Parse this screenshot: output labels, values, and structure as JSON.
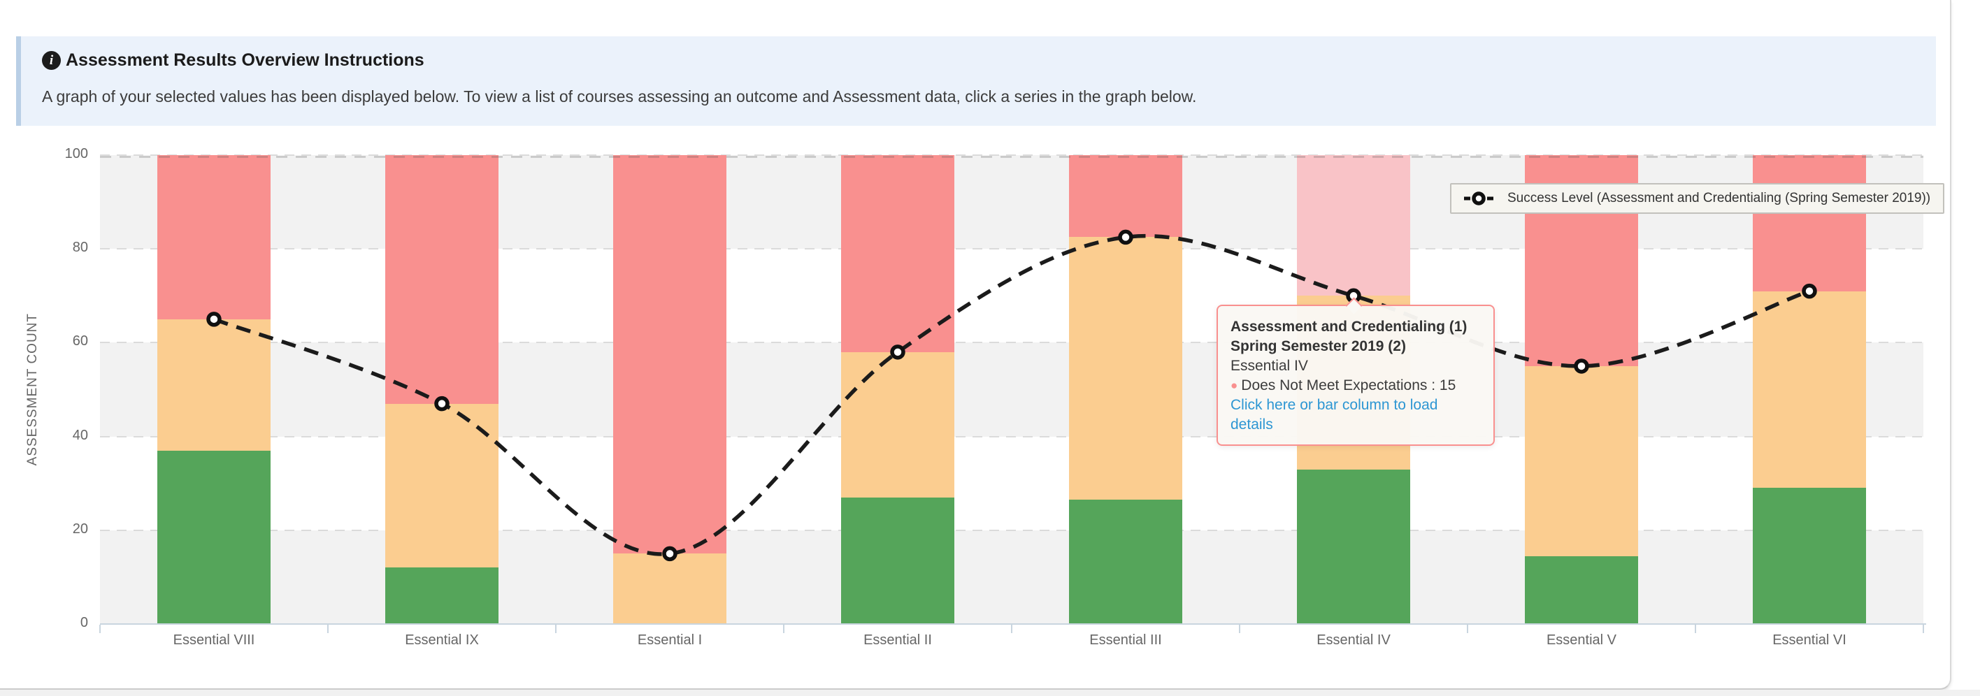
{
  "banner": {
    "title": "Assessment Results Overview Instructions",
    "body": "A graph of your selected values has been displayed below. To view a list of courses assessing an outcome and Assessment data, click a series in the graph below."
  },
  "legend": {
    "label": "Success Level (Assessment and Credentialing (Spring Semester 2019))"
  },
  "tooltip": {
    "line1": "Assessment and Credentialing (1)",
    "line2": "Spring Semester 2019 (2)",
    "line3": "Essential IV",
    "value_line": "Does Not Meet Expectations : 15",
    "link": "Click here or bar column to load details"
  },
  "chart_data": {
    "type": "bar",
    "subtype": "stacked-columns-with-dashed-line-overlay",
    "title": "",
    "xlabel": "",
    "ylabel": "ASSESSMENT COUNT",
    "ylim": [
      0,
      100
    ],
    "yticks": [
      0,
      20,
      40,
      60,
      80,
      100
    ],
    "alternate_grid_bands": true,
    "grid": true,
    "legend_position": "top-right-inside",
    "categories": [
      "Essential VIII",
      "Essential IX",
      "Essential I",
      "Essential II",
      "Essential III",
      "Essential IV",
      "Essential V",
      "Essential VI"
    ],
    "series": [
      {
        "id": "green",
        "color": "#55A55A",
        "values": [
          37,
          12,
          0,
          27,
          26.5,
          33,
          14.5,
          29
        ]
      },
      {
        "id": "orange",
        "color": "#FBCD90",
        "values": [
          28,
          35,
          15,
          31,
          56,
          37,
          40.5,
          42
        ]
      },
      {
        "id": "red",
        "label": "Does Not Meet Expectations",
        "color": "#F9908F",
        "values": [
          35,
          53,
          85,
          42,
          17.5,
          30,
          45,
          29
        ],
        "highlight": {
          "category_index": 5,
          "color": "#F9C3C7"
        }
      }
    ],
    "line_series": {
      "name": "Success Level (Assessment and Credentialing (Spring Semester 2019))",
      "style": "dashed-black-with-white-markers",
      "color": "#1B1B1B",
      "values": [
        65,
        47,
        15,
        58,
        82.5,
        70,
        55,
        71
      ]
    }
  }
}
